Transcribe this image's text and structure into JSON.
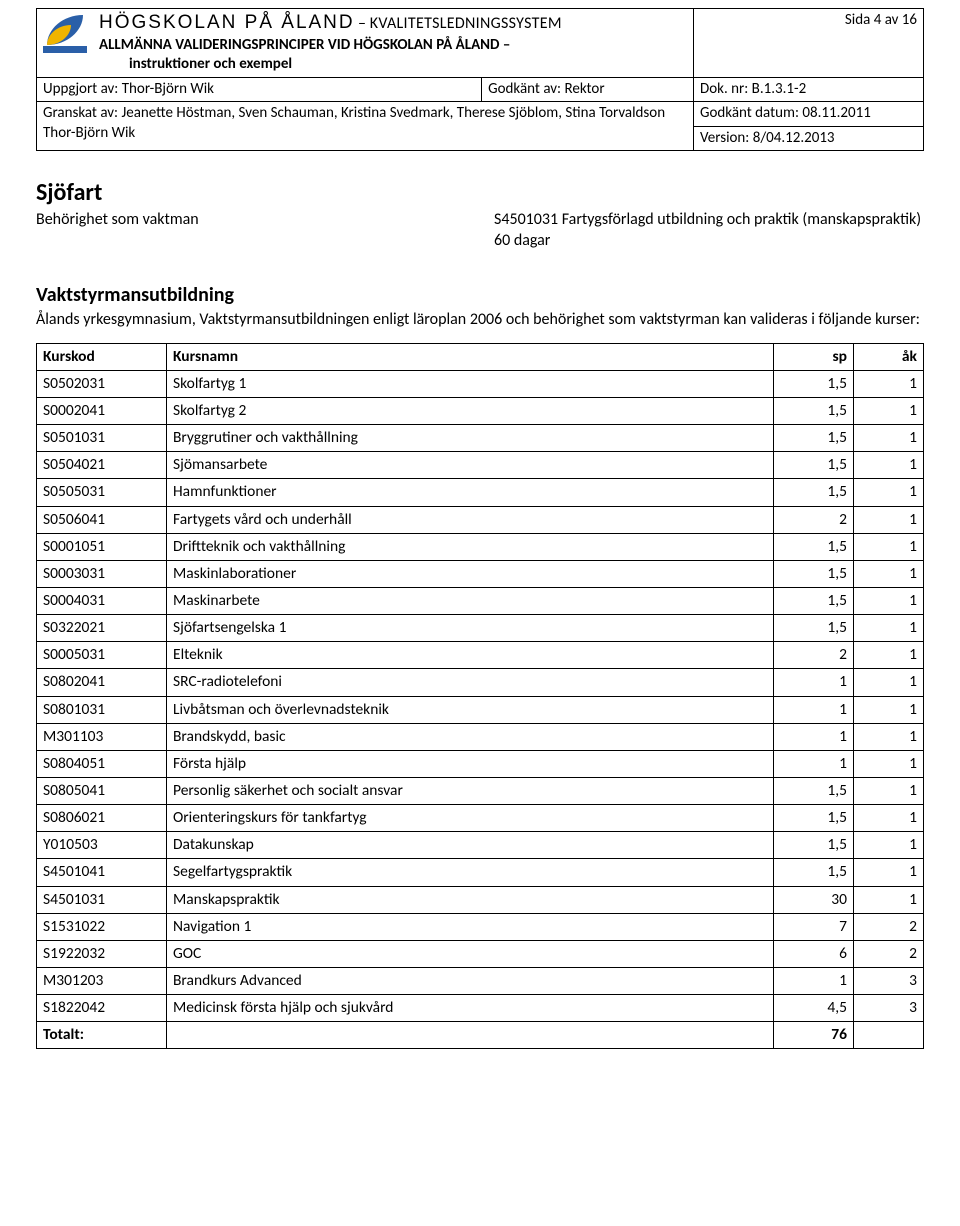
{
  "header": {
    "org_name": "HÖGSKOLAN PÅ ÅLAND",
    "system_sep": "–",
    "system": "KVALITETSLEDNINGSSYSTEM",
    "doc_title": "ALLMÄNNA VALIDERINGSPRINCIPER VID HÖGSKOLAN PÅ ÅLAND –",
    "doc_sub": "instruktioner och exempel",
    "page_label": "Sida 4 av 16",
    "uppgjort_label": "Uppgjort av:",
    "uppgjort_value": "Thor-Björn Wik",
    "godkant_av_label": "Godkänt av:",
    "godkant_av_value": "Rektor",
    "doknr_label": "Dok. nr:",
    "doknr_value": "B.1.3.1-2",
    "granskat_label": "Granskat av:",
    "granskat_value": "Jeanette Höstman, Sven Schauman, Kristina Svedmark, Therese Sjöblom, Stina Torvaldson Thor-Björn Wik",
    "godkant_datum_label": "Godkänt datum:",
    "godkant_datum_value": "08.11.2011",
    "version_label": "Version:",
    "version_value": "8/04.12.2013"
  },
  "section": {
    "title": "Sjöfart",
    "behorighet": "Behörighet som vaktman",
    "right_text": "S4501031 Fartygsförlagd utbildning och praktik (manskapspraktik) 60 dagar",
    "subheading": "Vaktstyrmansutbildning",
    "intro": "Ålands yrkesgymnasium, Vaktstyrmansutbildningen enligt läroplan 2006 och behörighet som vaktstyrman kan valideras i följande kurser:"
  },
  "table": {
    "headers": {
      "kod": "Kurskod",
      "namn": "Kursnamn",
      "sp": "sp",
      "ak": "åk"
    },
    "rows": [
      {
        "kod": "S0502031",
        "namn": "Skolfartyg 1",
        "sp": "1,5",
        "ak": "1"
      },
      {
        "kod": "S0002041",
        "namn": "Skolfartyg 2",
        "sp": "1,5",
        "ak": "1"
      },
      {
        "kod": "S0501031",
        "namn": "Bryggrutiner och vakthållning",
        "sp": "1,5",
        "ak": "1"
      },
      {
        "kod": "S0504021",
        "namn": "Sjömansarbete",
        "sp": "1,5",
        "ak": "1"
      },
      {
        "kod": "S0505031",
        "namn": "Hamnfunktioner",
        "sp": "1,5",
        "ak": "1"
      },
      {
        "kod": "S0506041",
        "namn": "Fartygets vård och underhåll",
        "sp": "2",
        "ak": "1"
      },
      {
        "kod": "S0001051",
        "namn": "Driftteknik och vakthållning",
        "sp": "1,5",
        "ak": "1"
      },
      {
        "kod": "S0003031",
        "namn": "Maskinlaborationer",
        "sp": "1,5",
        "ak": "1"
      },
      {
        "kod": "S0004031",
        "namn": "Maskinarbete",
        "sp": "1,5",
        "ak": "1"
      },
      {
        "kod": "S0322021",
        "namn": "Sjöfartsengelska 1",
        "sp": "1,5",
        "ak": "1"
      },
      {
        "kod": "S0005031",
        "namn": "Elteknik",
        "sp": "2",
        "ak": "1"
      },
      {
        "kod": "S0802041",
        "namn": "SRC-radiotelefoni",
        "sp": "1",
        "ak": "1"
      },
      {
        "kod": "S0801031",
        "namn": "Livbåtsman och överlevnadsteknik",
        "sp": "1",
        "ak": "1"
      },
      {
        "kod": "M301103",
        "namn": "Brandskydd, basic",
        "sp": "1",
        "ak": "1"
      },
      {
        "kod": "S0804051",
        "namn": "Första hjälp",
        "sp": "1",
        "ak": "1"
      },
      {
        "kod": "S0805041",
        "namn": "Personlig säkerhet och socialt ansvar",
        "sp": "1,5",
        "ak": "1"
      },
      {
        "kod": "S0806021",
        "namn": "Orienteringskurs för tankfartyg",
        "sp": "1,5",
        "ak": "1"
      },
      {
        "kod": "Y010503",
        "namn": "Datakunskap",
        "sp": "1,5",
        "ak": "1"
      },
      {
        "kod": "S4501041",
        "namn": "Segelfartygspraktik",
        "sp": "1,5",
        "ak": "1"
      },
      {
        "kod": "S4501031",
        "namn": "Manskapspraktik",
        "sp": "30",
        "ak": "1"
      },
      {
        "kod": "S1531022",
        "namn": "Navigation 1",
        "sp": "7",
        "ak": "2"
      },
      {
        "kod": "S1922032",
        "namn": "GOC",
        "sp": "6",
        "ak": "2"
      },
      {
        "kod": "M301203",
        "namn": "Brandkurs Advanced",
        "sp": "1",
        "ak": "3"
      },
      {
        "kod": "S1822042",
        "namn": "Medicinsk första hjälp och sjukvård",
        "sp": "4,5",
        "ak": "3"
      }
    ],
    "totals_label": "Totalt:",
    "totals_sp": "76"
  }
}
